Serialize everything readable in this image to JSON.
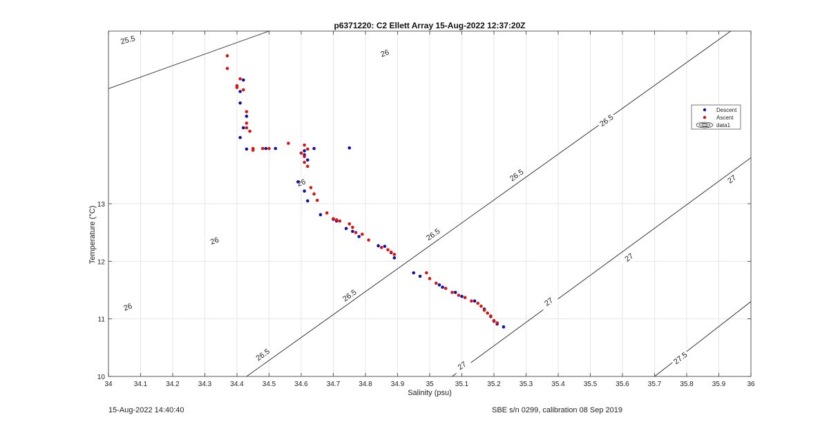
{
  "chart_data": {
    "type": "scatter",
    "title": "p6371220: C2 Ellett Array 15-Aug-2022 12:37:20Z",
    "xlabel": "Salinity (psu)",
    "ylabel": "Temperature (°C)",
    "xlim": [
      34,
      36
    ],
    "ylim": [
      10,
      16
    ],
    "xticks": [
      34,
      34.1,
      34.2,
      34.3,
      34.4,
      34.5,
      34.6,
      34.7,
      34.8,
      34.9,
      35,
      35.1,
      35.2,
      35.3,
      35.4,
      35.5,
      35.6,
      35.7,
      35.8,
      35.9,
      36
    ],
    "xtick_labels": [
      "34",
      "34.1",
      "34.2",
      "34.3",
      "34.4",
      "34.5",
      "34.6",
      "34.7",
      "34.8",
      "34.9",
      "35",
      "35.1",
      "35.2",
      "35.3",
      "35.4",
      "35.5",
      "35.6",
      "35.7",
      "35.8",
      "35.9",
      "36"
    ],
    "yticks": [
      10,
      11,
      12,
      13
    ],
    "ytick_labels": [
      "10",
      "11",
      "12",
      "13"
    ],
    "grid": true,
    "legend_position": "right",
    "legend": [
      {
        "label": "Descent",
        "marker": "dot",
        "color": "#1010a0"
      },
      {
        "label": "Ascent",
        "marker": "dot",
        "color": "#dd1111"
      },
      {
        "label": "data1",
        "marker": "contour-icon",
        "color": "#000000"
      }
    ],
    "contour_lines": [
      {
        "label": "25.5",
        "points": [
          [
            34,
            16.55
          ],
          [
            36,
            19.3
          ]
        ],
        "label_positions": [
          [
            34.3,
            16.8
          ],
          [
            34.55,
            17.13
          ],
          [
            34.06,
            15.85
          ]
        ]
      },
      {
        "label": "26",
        "points": [
          [
            34,
            15.0
          ],
          [
            36,
            19.0
          ]
        ],
        "label_positions": [
          [
            34.86,
            15.62
          ],
          [
            35.14,
            16.52
          ],
          [
            34.6,
            13.37
          ],
          [
            34.33,
            12.36
          ],
          [
            34.06,
            11.21
          ]
        ]
      },
      {
        "label": "26.5",
        "points": [
          [
            34.43,
            10.0
          ],
          [
            36,
            16.25
          ]
        ],
        "label_positions": [
          [
            35.55,
            14.45
          ],
          [
            35.27,
            13.5
          ],
          [
            35.01,
            12.47
          ],
          [
            34.75,
            11.41
          ],
          [
            34.48,
            10.38
          ]
        ]
      },
      {
        "label": "27",
        "points": [
          [
            35.07,
            10.0
          ],
          [
            36,
            13.8
          ]
        ],
        "label_positions": [
          [
            35.94,
            13.43
          ],
          [
            35.62,
            12.07
          ],
          [
            35.37,
            11.3
          ],
          [
            35.1,
            10.19
          ]
        ]
      },
      {
        "label": "27.5",
        "points": [
          [
            35.7,
            10.0
          ],
          [
            36,
            11.3
          ]
        ],
        "label_positions": [
          [
            35.78,
            10.32
          ]
        ]
      }
    ],
    "series": [
      {
        "name": "Descent",
        "color": "#1010a0",
        "x": [
          34.42,
          34.41,
          34.41,
          34.43,
          34.42,
          34.41,
          34.43,
          34.49,
          34.52,
          34.61,
          34.64,
          34.61,
          34.62,
          34.75,
          34.59,
          34.61,
          34.62,
          34.66,
          34.7,
          34.71,
          34.74,
          34.76,
          34.78,
          34.84,
          34.86,
          34.88,
          34.89,
          34.95,
          34.97,
          35.03,
          35.04,
          35.08,
          35.1,
          35.14,
          35.17,
          35.19,
          35.2,
          35.21,
          35.23
        ],
        "y": [
          15.15,
          14.95,
          14.75,
          14.52,
          14.32,
          14.15,
          13.95,
          13.96,
          13.96,
          13.85,
          13.96,
          13.92,
          13.76,
          13.97,
          13.38,
          13.22,
          13.05,
          12.81,
          12.73,
          12.7,
          12.57,
          12.52,
          12.43,
          12.27,
          12.26,
          12.15,
          12.06,
          11.8,
          11.74,
          11.59,
          11.55,
          11.46,
          11.39,
          11.31,
          11.17,
          11.04,
          10.96,
          10.91,
          10.86
        ]
      },
      {
        "name": "Ascent",
        "color": "#dd1111",
        "x": [
          34.37,
          34.37,
          34.4,
          34.41,
          34.4,
          34.42,
          34.43,
          34.43,
          34.43,
          34.44,
          34.45,
          34.45,
          34.48,
          34.5,
          34.56,
          34.6,
          34.61,
          34.61,
          34.62,
          34.6,
          34.61,
          34.62,
          34.63,
          34.64,
          34.65,
          34.68,
          34.7,
          34.71,
          34.72,
          34.75,
          34.76,
          34.77,
          34.79,
          34.81,
          34.85,
          34.87,
          34.88,
          34.89,
          34.99,
          35.0,
          35.02,
          35.05,
          35.07,
          35.09,
          35.11,
          35.13,
          35.15,
          35.16,
          35.17,
          35.18,
          35.19,
          35.2,
          35.21
        ],
        "y": [
          15.57,
          15.35,
          15.05,
          15.17,
          15.02,
          14.98,
          14.6,
          14.4,
          14.32,
          14.26,
          13.96,
          13.93,
          13.96,
          13.96,
          14.05,
          13.88,
          13.82,
          14.02,
          13.95,
          13.88,
          13.72,
          13.65,
          13.28,
          13.17,
          13.06,
          12.84,
          12.74,
          12.72,
          12.7,
          12.65,
          12.59,
          12.5,
          12.47,
          12.37,
          12.24,
          12.2,
          12.16,
          12.12,
          11.8,
          11.7,
          11.62,
          11.53,
          11.46,
          11.41,
          11.37,
          11.31,
          11.27,
          11.22,
          11.15,
          11.1,
          11.05,
          10.97,
          10.93
        ]
      }
    ]
  },
  "footer": {
    "timestamp": "15-Aug-2022 14:40:40",
    "instrument": "SBE s/n 0299, calibration 08 Sep 2019"
  }
}
